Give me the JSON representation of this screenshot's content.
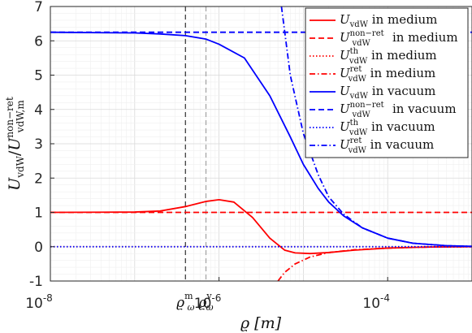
{
  "chart_data": {
    "type": "line",
    "x_scale": "log",
    "xlim": [
      1e-08,
      0.001
    ],
    "ylim": [
      -1,
      7
    ],
    "grid": true,
    "legend_position": "top-right",
    "xlabel": "ϱ [m]",
    "ylabel": "U_vdW / U_vdW,m^non−ret",
    "x_ticks": [
      {
        "value": 1e-08,
        "base": "10",
        "exp": "-8"
      },
      {
        "value": 1e-06,
        "base": "10",
        "exp": "-6"
      },
      {
        "value": 0.0001,
        "base": "10",
        "exp": "-4"
      }
    ],
    "y_ticks": [
      "-1",
      "0",
      "1",
      "2",
      "3",
      "4",
      "5",
      "6",
      "7"
    ],
    "markers": [
      {
        "x": 4e-07,
        "label_main": "ϱ",
        "label_sub": "ω",
        "label_sup": "m",
        "color": "#404040"
      },
      {
        "x": 7e-07,
        "label_main": "ϱ",
        "label_sub": "ω",
        "label_sup": "v",
        "color": "#a6a6a6"
      }
    ],
    "series": [
      {
        "name": "U_vdW in medium",
        "legend": {
          "sym": "U",
          "sub": "vdW",
          "sup": "",
          "suffix": " in medium"
        },
        "color": "#ff0000",
        "dash": "solid",
        "points": [
          [
            1e-08,
            1.0
          ],
          [
            1e-07,
            1.01
          ],
          [
            2e-07,
            1.04
          ],
          [
            4e-07,
            1.17
          ],
          [
            7e-07,
            1.32
          ],
          [
            1e-06,
            1.37
          ],
          [
            1.5e-06,
            1.3
          ],
          [
            2.5e-06,
            0.85
          ],
          [
            4e-06,
            0.25
          ],
          [
            6e-06,
            -0.1
          ],
          [
            8e-06,
            -0.18
          ],
          [
            1.2e-05,
            -0.2
          ],
          [
            2e-05,
            -0.17
          ],
          [
            4e-05,
            -0.1
          ],
          [
            0.0001,
            -0.04
          ],
          [
            0.0003,
            -0.01
          ],
          [
            0.001,
            0.0
          ]
        ]
      },
      {
        "name": "U_vdW^non-ret in medium",
        "legend": {
          "sym": "U",
          "sub": "vdW",
          "sup": "non−ret",
          "suffix": " in medium"
        },
        "color": "#ff0000",
        "dash": "dashed",
        "points": [
          [
            1e-08,
            1.0
          ],
          [
            0.001,
            1.0
          ]
        ]
      },
      {
        "name": "U_vdW^th in medium",
        "legend": {
          "sym": "U",
          "sub": "vdW",
          "sup": "th",
          "suffix": " in medium"
        },
        "color": "#ff0000",
        "dash": "dotted",
        "points": [
          [
            1e-08,
            0.0
          ],
          [
            0.001,
            0.0
          ]
        ]
      },
      {
        "name": "U_vdW^ret in medium",
        "legend": {
          "sym": "U",
          "sub": "vdW",
          "sup": "ret",
          "suffix": " in medium"
        },
        "color": "#ff0000",
        "dash": "dashdot",
        "points": [
          [
            5e-06,
            -1.0
          ],
          [
            6e-06,
            -0.75
          ],
          [
            8e-06,
            -0.5
          ],
          [
            1.2e-05,
            -0.3
          ],
          [
            2e-05,
            -0.17
          ],
          [
            4e-05,
            -0.09
          ],
          [
            0.0001,
            -0.04
          ],
          [
            0.0003,
            -0.01
          ],
          [
            0.001,
            0.0
          ]
        ]
      },
      {
        "name": "U_vdW in vacuum",
        "legend": {
          "sym": "U",
          "sub": "vdW",
          "sup": "",
          "suffix": " in vacuum"
        },
        "color": "#0000ff",
        "dash": "solid",
        "points": [
          [
            1e-08,
            6.25
          ],
          [
            1e-07,
            6.23
          ],
          [
            2e-07,
            6.2
          ],
          [
            4e-07,
            6.15
          ],
          [
            7e-07,
            6.05
          ],
          [
            1e-06,
            5.9
          ],
          [
            2e-06,
            5.5
          ],
          [
            4e-06,
            4.4
          ],
          [
            7e-06,
            3.2
          ],
          [
            1e-05,
            2.4
          ],
          [
            1.5e-05,
            1.7
          ],
          [
            2e-05,
            1.3
          ],
          [
            3e-05,
            0.9
          ],
          [
            5e-05,
            0.55
          ],
          [
            0.0001,
            0.25
          ],
          [
            0.0002,
            0.1
          ],
          [
            0.0005,
            0.03
          ],
          [
            0.001,
            0.01
          ]
        ]
      },
      {
        "name": "U_vdW^non-ret in vacuum",
        "legend": {
          "sym": "U",
          "sub": "vdW",
          "sup": "non−ret",
          "suffix": " in vacuum"
        },
        "color": "#0000ff",
        "dash": "dashed",
        "points": [
          [
            1e-08,
            6.25
          ],
          [
            0.001,
            6.25
          ]
        ]
      },
      {
        "name": "U_vdW^th in vacuum",
        "legend": {
          "sym": "U",
          "sub": "vdW",
          "sup": "th",
          "suffix": " in vacuum"
        },
        "color": "#0000ff",
        "dash": "dotted",
        "points": [
          [
            1e-08,
            0.0
          ],
          [
            0.001,
            0.0
          ]
        ]
      },
      {
        "name": "U_vdW^ret in vacuum",
        "legend": {
          "sym": "U",
          "sub": "vdW",
          "sup": "ret",
          "suffix": " in vacuum"
        },
        "color": "#0000ff",
        "dash": "dashdot",
        "points": [
          [
            5.5e-06,
            7.0
          ],
          [
            7e-06,
            5.0
          ],
          [
            1e-05,
            3.3
          ],
          [
            1.5e-05,
            2.1
          ],
          [
            2e-05,
            1.45
          ],
          [
            3e-05,
            0.95
          ],
          [
            5e-05,
            0.55
          ],
          [
            0.0001,
            0.25
          ],
          [
            0.0002,
            0.1
          ],
          [
            0.0005,
            0.03
          ],
          [
            0.001,
            0.01
          ]
        ]
      }
    ]
  }
}
